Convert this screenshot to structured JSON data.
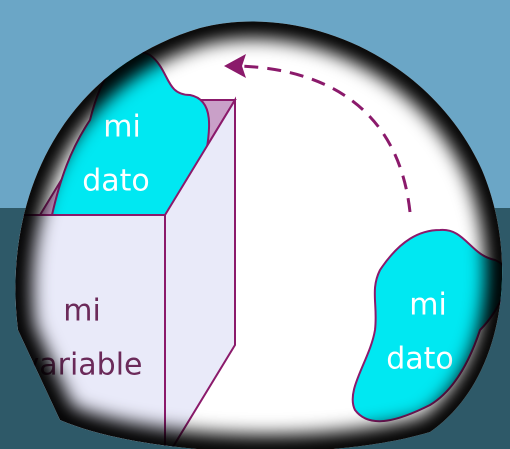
{
  "illustration": {
    "box_label": [
      "mi",
      "variable"
    ],
    "blobs": [
      {
        "lines": [
          "mi",
          "dato"
        ]
      },
      {
        "lines": [
          "mi",
          "dato"
        ]
      }
    ]
  }
}
